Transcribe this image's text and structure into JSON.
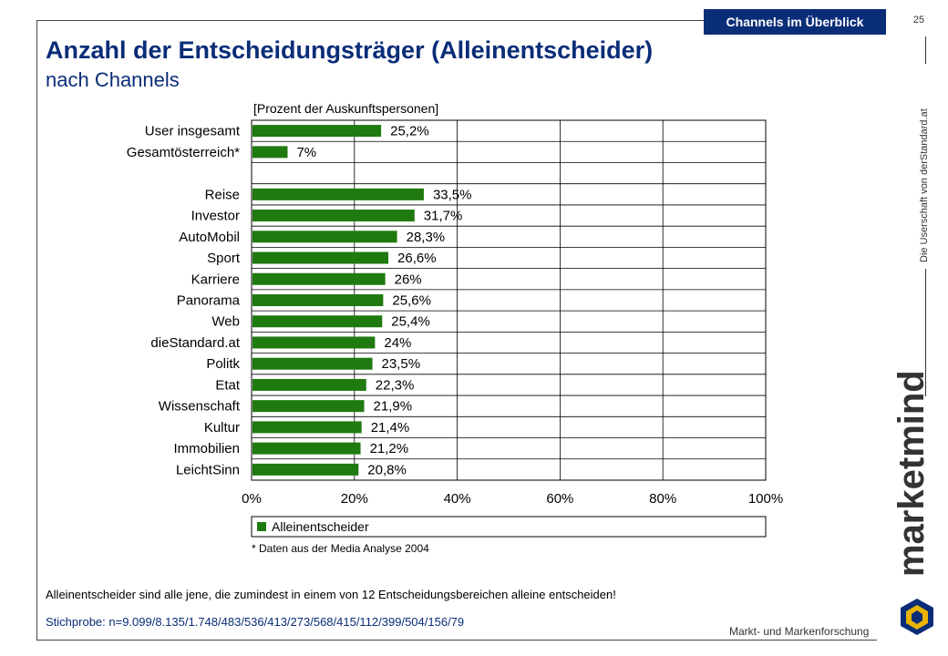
{
  "header": {
    "tab_label": "Channels im Überblick",
    "page_number": "25",
    "title": "Anzahl der Entscheidungsträger (Alleinentscheider)",
    "subtitle": "nach Channels"
  },
  "sidebar": {
    "vertical_text": "Die Userschaft von derStandard.at",
    "brand": "marketmind"
  },
  "chart_data": {
    "type": "bar",
    "orientation": "horizontal",
    "unit_label": "[Prozent der Auskunftspersonen]",
    "categories": [
      "User insgesamt",
      "Gesamtösterreich*",
      "",
      "Reise",
      "Investor",
      "AutoMobil",
      "Sport",
      "Karriere",
      "Panorama",
      "Web",
      "dieStandard.at",
      "Politk",
      "Etat",
      "Wissenschaft",
      "Kultur",
      "Immobilien",
      "LeichtSinn"
    ],
    "series": [
      {
        "name": "Alleinentscheider",
        "color": "#1f7a0f",
        "values": [
          25.2,
          7,
          null,
          33.5,
          31.7,
          28.3,
          26.6,
          26,
          25.6,
          25.4,
          24,
          23.5,
          22.3,
          21.9,
          21.4,
          21.2,
          20.8
        ],
        "value_labels": [
          "25,2%",
          "7%",
          "",
          "33,5%",
          "31,7%",
          "28,3%",
          "26,6%",
          "26%",
          "25,6%",
          "25,4%",
          "24%",
          "23,5%",
          "22,3%",
          "21,9%",
          "21,4%",
          "21,2%",
          "20,8%"
        ]
      }
    ],
    "xlim": [
      0,
      100
    ],
    "xticks": [
      0,
      20,
      40,
      60,
      80,
      100
    ],
    "xtick_labels": [
      "0%",
      "20%",
      "40%",
      "60%",
      "80%",
      "100%"
    ],
    "grid": true,
    "legend": "bottom",
    "footnote": "* Daten aus der Media Analyse 2004"
  },
  "notes": {
    "definition": "Alleinentscheider sind alle jene, die zumindest in einem von 12 Entscheidungsbereichen alleine entscheiden!",
    "sample": "Stichprobe: n=9.099/8.135/1.748/483/536/413/273/568/415/112/399/504/156/79"
  },
  "footer": {
    "company": "Markt- und Markenforschung"
  }
}
